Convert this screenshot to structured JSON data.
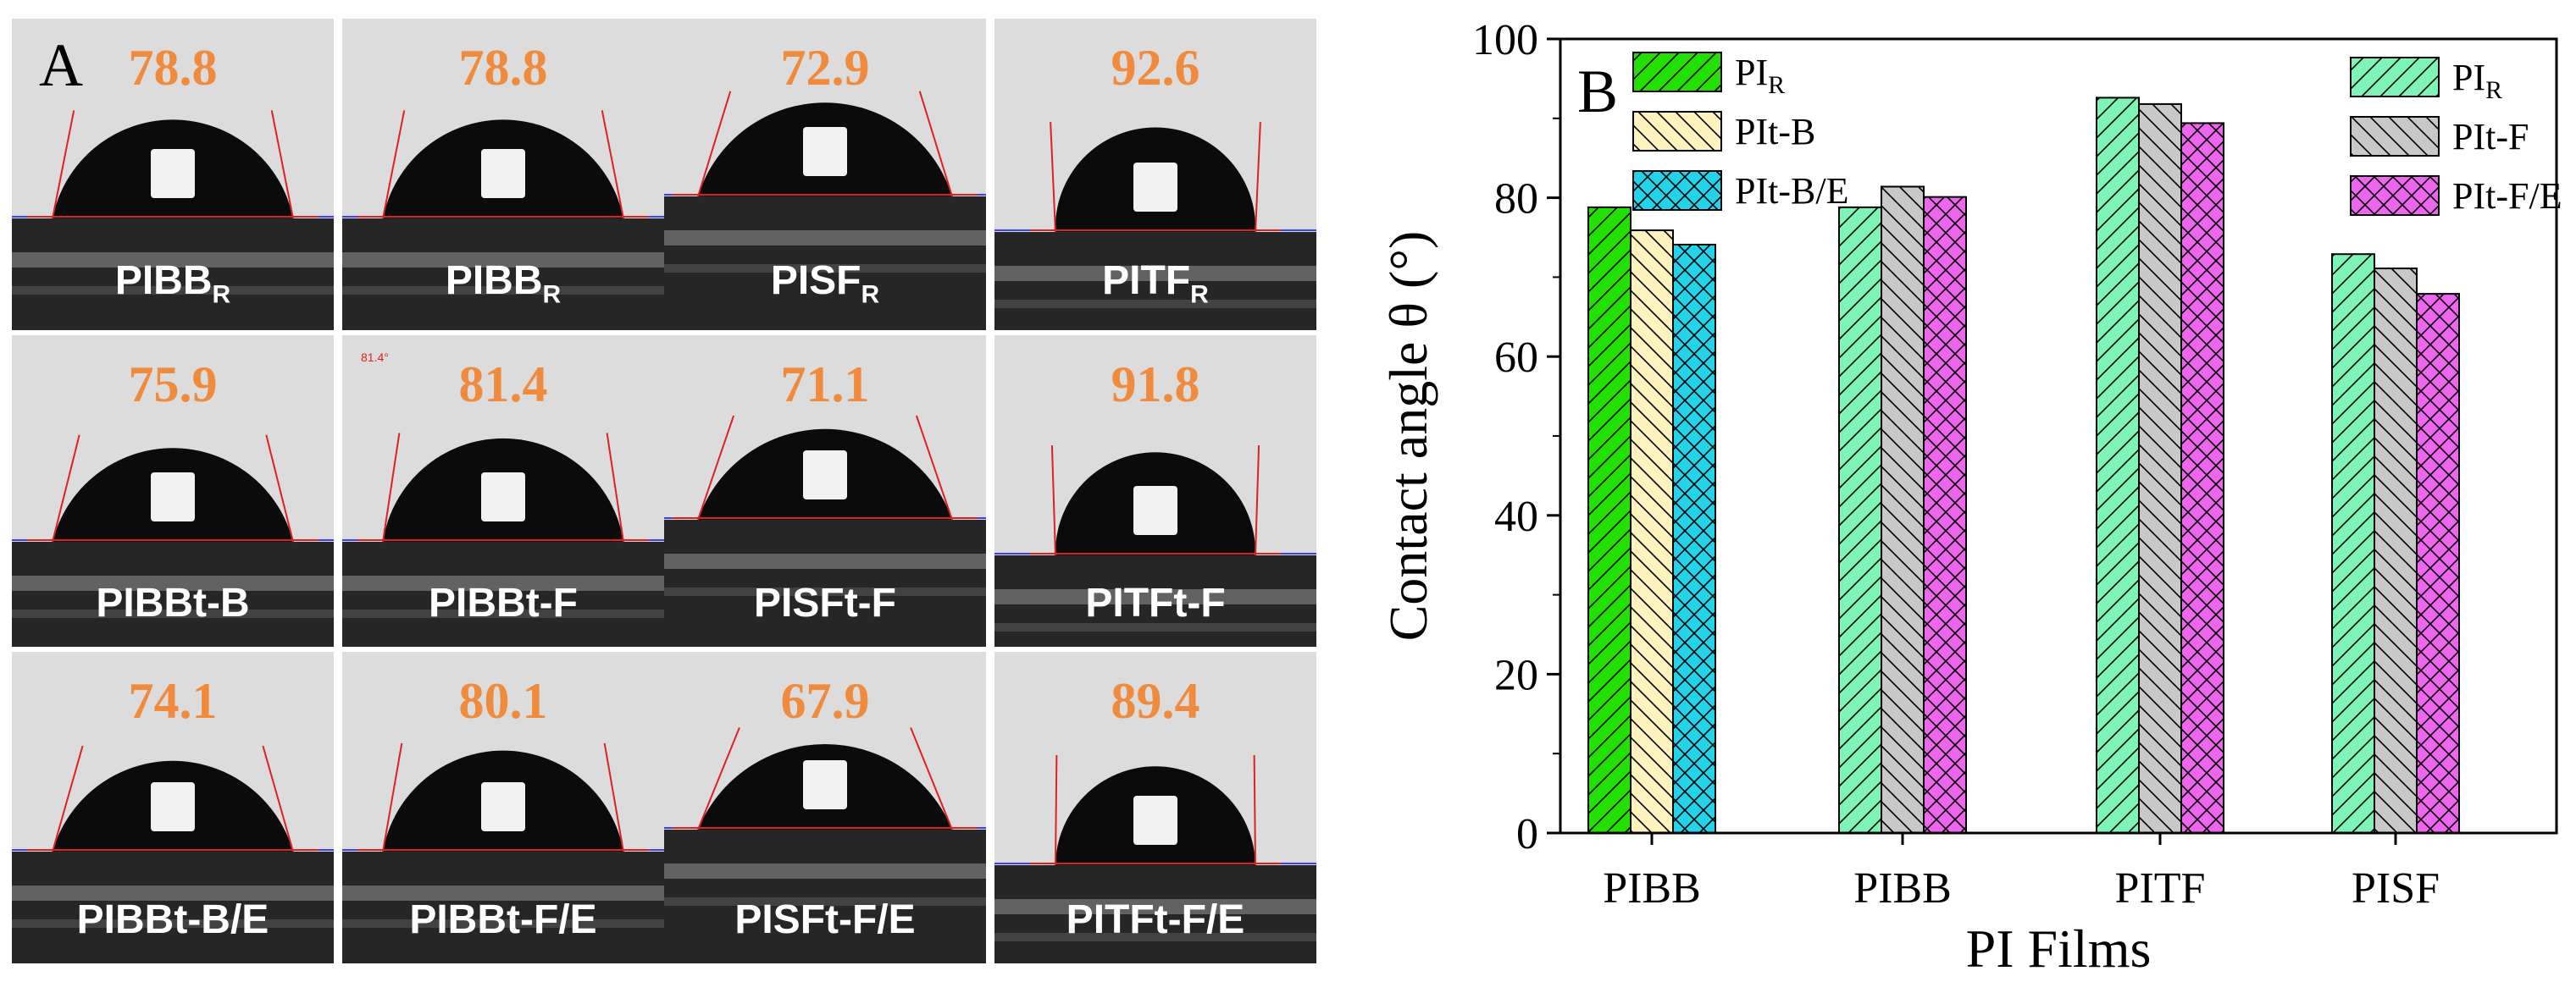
{
  "panel_a": {
    "letter": "A",
    "cells": [
      {
        "angle": "78.8",
        "film": "PIBB",
        "sub": "R",
        "tilt": 0
      },
      {
        "angle": "78.8",
        "film": "PIBB",
        "sub": "R",
        "tilt": 0
      },
      {
        "angle": "72.9",
        "film": "PISF",
        "sub": "R",
        "tilt": 0
      },
      {
        "angle": "92.6",
        "film": "PITF",
        "sub": "R",
        "tilt": 0
      },
      {
        "angle": "75.9",
        "film": "PIBBt-B",
        "sub": "",
        "tilt": 0
      },
      {
        "angle": "81.4",
        "film": "PIBBt-F",
        "sub": "",
        "tilt": 0,
        "note": "81.4°"
      },
      {
        "angle": "71.1",
        "film": "PISFt-F",
        "sub": "",
        "tilt": 0
      },
      {
        "angle": "91.8",
        "film": "PITFt-F",
        "sub": "",
        "tilt": 0
      },
      {
        "angle": "74.1",
        "film": "PIBBt-B/E",
        "sub": "",
        "tilt": 0
      },
      {
        "angle": "80.1",
        "film": "PIBBt-F/E",
        "sub": "",
        "tilt": 0
      },
      {
        "angle": "67.9",
        "film": "PISFt-F/E",
        "sub": "",
        "tilt": 0
      },
      {
        "angle": "89.4",
        "film": "PITFt-F/E",
        "sub": "",
        "tilt": 0
      }
    ]
  },
  "chart_data": {
    "type": "bar",
    "panel_letter": "B",
    "xlabel": "PI Films",
    "ylabel": "Contact angle θ (°)",
    "ylim": [
      0,
      100
    ],
    "yticks": [
      0,
      20,
      40,
      60,
      80,
      100
    ],
    "groups": [
      {
        "category": "PIBB",
        "bars": [
          {
            "series": "PI_R (green)",
            "value": 78.8,
            "color": "#22e000",
            "pattern": "diag-right"
          },
          {
            "series": "PIt-B",
            "value": 75.9,
            "color": "#fff2be",
            "pattern": "diag-left"
          },
          {
            "series": "PIt-B/E",
            "value": 74.1,
            "color": "#22d3ea",
            "pattern": "cross"
          }
        ]
      },
      {
        "category": "PIBB",
        "bars": [
          {
            "series": "PI_R (mint)",
            "value": 78.8,
            "color": "#7ef3b6",
            "pattern": "diag-right"
          },
          {
            "series": "PIt-F",
            "value": 81.4,
            "color": "#c8c8c8",
            "pattern": "diag-left"
          },
          {
            "series": "PIt-F/E",
            "value": 80.1,
            "color": "#ee66ee",
            "pattern": "cross"
          }
        ]
      },
      {
        "category": "PITF",
        "bars": [
          {
            "series": "PI_R (mint)",
            "value": 92.6,
            "color": "#7ef3b6",
            "pattern": "diag-right"
          },
          {
            "series": "PIt-F",
            "value": 91.8,
            "color": "#c8c8c8",
            "pattern": "diag-left"
          },
          {
            "series": "PIt-F/E",
            "value": 89.4,
            "color": "#ee66ee",
            "pattern": "cross"
          }
        ]
      },
      {
        "category": "PISF",
        "bars": [
          {
            "series": "PI_R (mint)",
            "value": 72.9,
            "color": "#7ef3b6",
            "pattern": "diag-right"
          },
          {
            "series": "PIt-F",
            "value": 71.1,
            "color": "#c8c8c8",
            "pattern": "diag-left"
          },
          {
            "series": "PIt-F/E",
            "value": 67.9,
            "color": "#ee66ee",
            "pattern": "cross"
          }
        ]
      }
    ],
    "legend_left": [
      {
        "main": "PI",
        "sub": "R",
        "color": "#22e000",
        "pattern": "diag-right"
      },
      {
        "main": "PIt-B",
        "sub": "",
        "color": "#fff2be",
        "pattern": "diag-left"
      },
      {
        "main": "PIt-B/E",
        "sub": "",
        "color": "#22d3ea",
        "pattern": "cross"
      }
    ],
    "legend_right": [
      {
        "main": "PI",
        "sub": "R",
        "color": "#7ef3b6",
        "pattern": "diag-right"
      },
      {
        "main": "PIt-F",
        "sub": "",
        "color": "#c8c8c8",
        "pattern": "diag-left"
      },
      {
        "main": "PIt-F/E",
        "sub": "",
        "color": "#ee66ee",
        "pattern": "cross"
      }
    ]
  }
}
